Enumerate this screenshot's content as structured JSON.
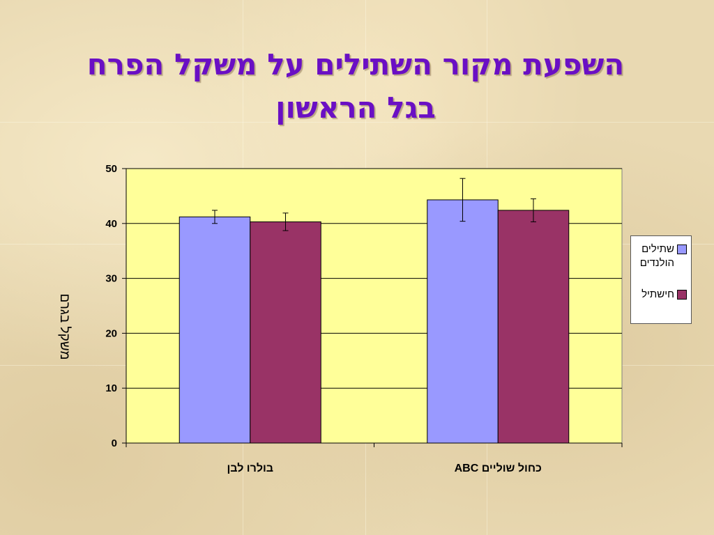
{
  "slide": {
    "title_line1": "השפעת מקור השתילים על משקל הפרח",
    "title_line2": "בגל הראשון",
    "title_color": "#6a0fc4"
  },
  "chart_data": {
    "type": "bar",
    "ylabel": "משקל בגרם",
    "xlabel": "",
    "ylim": [
      0,
      50
    ],
    "yticks": [
      0,
      10,
      20,
      30,
      40,
      50
    ],
    "grid": true,
    "legend_position": "right",
    "plot_background": "#ffff99",
    "categories": [
      "בולרו לבן",
      "כחול שוליים ABC"
    ],
    "series": [
      {
        "name": "שתילים הולנדים",
        "color": "#9999ff",
        "values": [
          41.2,
          44.3
        ],
        "errors": [
          1.2,
          3.9
        ]
      },
      {
        "name": "חישתיל",
        "color": "#993366",
        "values": [
          40.3,
          42.4
        ],
        "errors": [
          1.6,
          2.1
        ]
      }
    ]
  }
}
